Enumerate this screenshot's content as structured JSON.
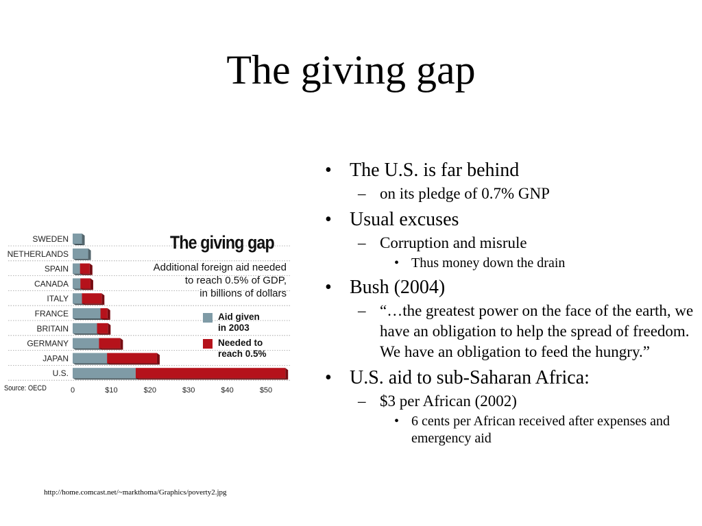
{
  "slide": {
    "title": "The giving gap",
    "image_caption": "http://home.comcast.net/~markthoma/Graphics/poverty2.jpg"
  },
  "chart_data": {
    "type": "bar",
    "orientation": "horizontal",
    "stacked": true,
    "title": "The giving gap",
    "subtitle": "Additional foreign aid needed\nto reach 0.5% of GDP,\nin billions of dollars",
    "source": "Source: OECD",
    "categories": [
      "SWEDEN",
      "NETHERLANDS",
      "SPAIN",
      "CANADA",
      "ITALY",
      "FRANCE",
      "BRITAIN",
      "GERMANY",
      "JAPAN",
      "U.S."
    ],
    "series": [
      {
        "name": "Aid given\nin 2003",
        "color": "#7f9ba6",
        "values": [
          2.4,
          4.0,
          1.9,
          2.0,
          2.4,
          7.2,
          6.3,
          6.8,
          8.9,
          16.3
        ]
      },
      {
        "name": "Needed to\nreach 0.5%",
        "color": "#b5121b",
        "values": [
          0,
          0,
          2.5,
          2.6,
          5.1,
          1.8,
          2.8,
          5.5,
          12.9,
          38.7
        ]
      }
    ],
    "x_ticks": [
      "0",
      "$10",
      "$20",
      "$30",
      "$40",
      "$50"
    ],
    "xlim": [
      0,
      55
    ],
    "legend_position": "right"
  },
  "bullets": [
    {
      "level": 1,
      "marker": "•",
      "text": "The U.S. is far behind"
    },
    {
      "level": 2,
      "marker": "–",
      "text": "on its pledge of 0.7% GNP"
    },
    {
      "level": 1,
      "marker": "•",
      "text": "Usual excuses"
    },
    {
      "level": 2,
      "marker": "–",
      "text": "Corruption and misrule"
    },
    {
      "level": 3,
      "marker": "•",
      "text": "Thus money down the drain"
    },
    {
      "level": 1,
      "marker": "•",
      "text": "Bush (2004)"
    },
    {
      "level": 2,
      "marker": "–",
      "text": "“…the greatest power on the face of the earth, we have an obligation to help the spread of freedom.  We have an obligation to feed the hungry.”"
    },
    {
      "level": 1,
      "marker": "•",
      "text": "U.S. aid to sub-Saharan Africa:"
    },
    {
      "level": 2,
      "marker": "–",
      "text": "$3 per African (2002)"
    },
    {
      "level": 3,
      "marker": "•",
      "text": "6 cents per African received after expenses and emergency aid"
    }
  ]
}
